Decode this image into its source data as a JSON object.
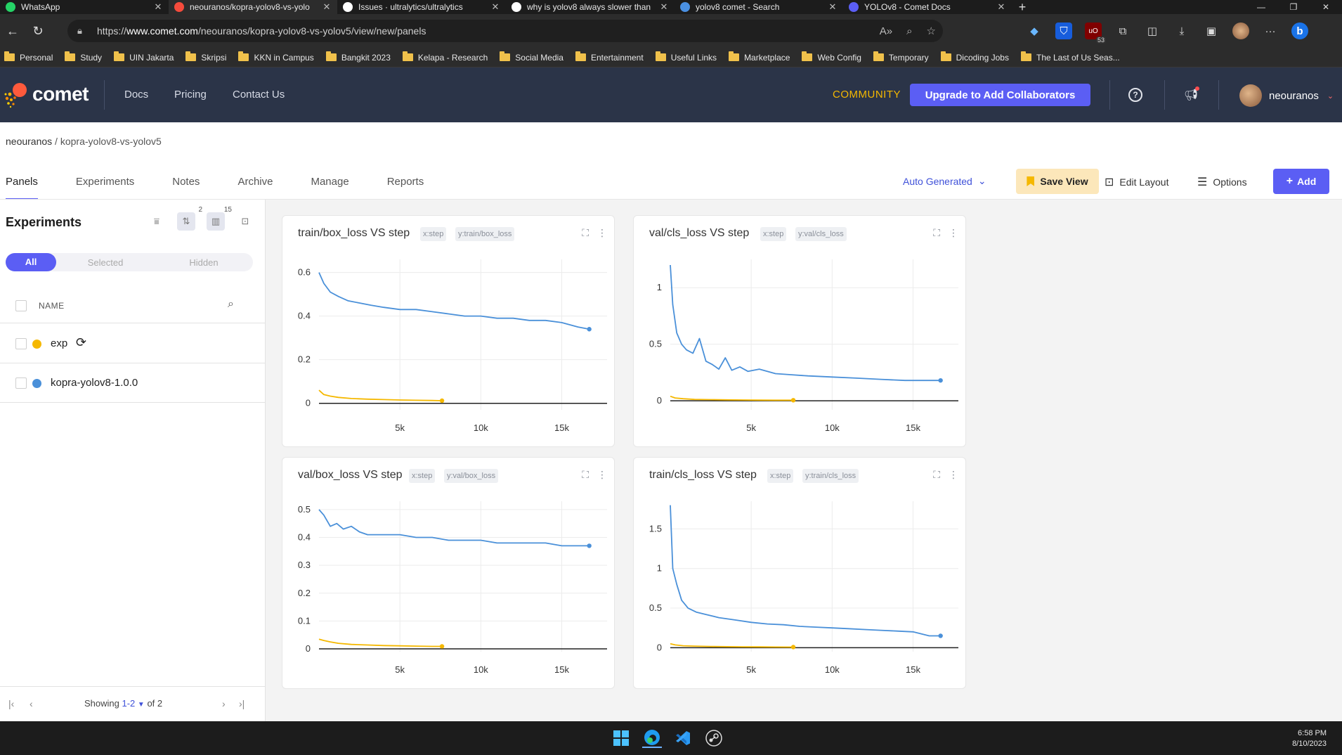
{
  "browser": {
    "tabs": [
      {
        "label": "WhatsApp",
        "color": "#25d366"
      },
      {
        "label": "neouranos/kopra-yolov8-vs-yolo",
        "color": "#f54b3c",
        "active": true
      },
      {
        "label": "Issues · ultralytics/ultralytics",
        "color": "#ffffff"
      },
      {
        "label": "why is yolov8 always slower than",
        "color": "#ffffff"
      },
      {
        "label": "yolov8 comet - Search",
        "color": "#4a90e2"
      },
      {
        "label": "YOLOv8 - Comet Docs",
        "color": "#5b5ef4"
      }
    ],
    "url_prefix": "https://",
    "url_domain": "www.comet.com",
    "url_path": "/neouranos/kopra-yolov8-vs-yolov5/view/new/panels",
    "extension_badge": "53",
    "bookmarks": [
      "Personal",
      "Study",
      "UIN Jakarta",
      "Skripsi",
      "KKN in Campus",
      "Bangkit 2023",
      "Kelapa - Research",
      "Social Media",
      "Entertainment",
      "Useful Links",
      "Marketplace",
      "Web Config",
      "Temporary",
      "Dicoding Jobs",
      "The Last of Us Seas..."
    ]
  },
  "header": {
    "brand": "comet",
    "nav": [
      "Docs",
      "Pricing",
      "Contact Us"
    ],
    "community": "COMMUNITY",
    "upgrade": "Upgrade to Add Collaborators",
    "username": "neouranos"
  },
  "breadcrumb": {
    "workspace": "neouranos",
    "separator": " / ",
    "project": "kopra-yolov8-vs-yolov5"
  },
  "tabs": [
    "Panels",
    "Experiments",
    "Notes",
    "Archive",
    "Manage",
    "Reports"
  ],
  "toolbar": {
    "view": "Auto Generated",
    "save_view": "Save View",
    "edit_layout": "Edit Layout",
    "options": "Options",
    "add": "Add"
  },
  "sidebar": {
    "title": "Experiments",
    "sort_count": "2",
    "columns_count": "15",
    "filters": [
      "All",
      "Selected",
      "Hidden"
    ],
    "name_header": "NAME",
    "experiments": [
      {
        "name": "exp",
        "color": "#f5b800",
        "running": true
      },
      {
        "name": "kopra-yolov8-1.0.0",
        "color": "#4a90d9",
        "running": false
      }
    ],
    "showing_label": "Showing",
    "showing_range": "1-2",
    "showing_total": "of 2"
  },
  "chart_data": [
    {
      "type": "line",
      "title": "train/box_loss VS step",
      "x_tag": "x:step",
      "y_tag": "y:train/box_loss",
      "xlim": [
        0,
        17800
      ],
      "ylim": [
        -0.03,
        0.66
      ],
      "xticks": [
        {
          "v": 5000,
          "label": "5k"
        },
        {
          "v": 10000,
          "label": "10k"
        },
        {
          "v": 15000,
          "label": "15k"
        }
      ],
      "yticks": [
        {
          "v": 0,
          "label": "0"
        },
        {
          "v": 0.2,
          "label": "0.2"
        },
        {
          "v": 0.4,
          "label": "0.4"
        },
        {
          "v": 0.6,
          "label": "0.6"
        }
      ],
      "series": [
        {
          "color": "#4a90d9",
          "x": [
            0,
            300,
            700,
            1200,
            1800,
            2500,
            3200,
            4000,
            5000,
            6000,
            7000,
            8000,
            9000,
            10000,
            11000,
            12000,
            13000,
            14000,
            15000,
            16000,
            16700
          ],
          "y": [
            0.6,
            0.55,
            0.51,
            0.49,
            0.47,
            0.46,
            0.45,
            0.44,
            0.43,
            0.43,
            0.42,
            0.41,
            0.4,
            0.4,
            0.39,
            0.39,
            0.38,
            0.38,
            0.37,
            0.35,
            0.34
          ]
        },
        {
          "color": "#f5b800",
          "x": [
            0,
            300,
            700,
            1200,
            2000,
            3000,
            4000,
            5000,
            6000,
            7000,
            7600
          ],
          "y": [
            0.06,
            0.04,
            0.033,
            0.027,
            0.022,
            0.019,
            0.017,
            0.015,
            0.014,
            0.013,
            0.012
          ]
        }
      ]
    },
    {
      "type": "line",
      "title": "val/cls_loss VS step",
      "x_tag": "x:step",
      "y_tag": "y:val/cls_loss",
      "xlim": [
        0,
        17800
      ],
      "ylim": [
        -0.08,
        1.25
      ],
      "xticks": [
        {
          "v": 5000,
          "label": "5k"
        },
        {
          "v": 10000,
          "label": "10k"
        },
        {
          "v": 15000,
          "label": "15k"
        }
      ],
      "yticks": [
        {
          "v": 0,
          "label": "0"
        },
        {
          "v": 0.5,
          "label": "0.5"
        },
        {
          "v": 1,
          "label": "1"
        }
      ],
      "series": [
        {
          "color": "#4a90d9",
          "x": [
            0,
            150,
            400,
            700,
            1000,
            1400,
            1800,
            2200,
            2600,
            3000,
            3400,
            3800,
            4300,
            4800,
            5500,
            6500,
            7500,
            8500,
            10000,
            11500,
            13000,
            14500,
            16000,
            16700
          ],
          "y": [
            1.2,
            0.85,
            0.6,
            0.5,
            0.45,
            0.42,
            0.55,
            0.35,
            0.32,
            0.28,
            0.38,
            0.27,
            0.3,
            0.26,
            0.28,
            0.24,
            0.23,
            0.22,
            0.21,
            0.2,
            0.19,
            0.18,
            0.18,
            0.18
          ]
        },
        {
          "color": "#f5b800",
          "x": [
            0,
            300,
            800,
            1500,
            2500,
            3500,
            4500,
            5500,
            6500,
            7600
          ],
          "y": [
            0.04,
            0.025,
            0.018,
            0.012,
            0.01,
            0.008,
            0.007,
            0.006,
            0.005,
            0.005
          ]
        }
      ]
    },
    {
      "type": "line",
      "title": "val/box_loss VS step",
      "x_tag": "x:step",
      "y_tag": "y:val/box_loss",
      "xlim": [
        0,
        17800
      ],
      "ylim": [
        -0.01,
        0.53
      ],
      "xticks": [
        {
          "v": 5000,
          "label": "5k"
        },
        {
          "v": 10000,
          "label": "10k"
        },
        {
          "v": 15000,
          "label": "15k"
        }
      ],
      "yticks": [
        {
          "v": 0,
          "label": "0"
        },
        {
          "v": 0.1,
          "label": "0.1"
        },
        {
          "v": 0.2,
          "label": "0.2"
        },
        {
          "v": 0.3,
          "label": "0.3"
        },
        {
          "v": 0.4,
          "label": "0.4"
        },
        {
          "v": 0.5,
          "label": "0.5"
        }
      ],
      "series": [
        {
          "color": "#4a90d9",
          "x": [
            0,
            300,
            700,
            1100,
            1500,
            2000,
            2500,
            3000,
            4000,
            5000,
            6000,
            7000,
            8000,
            9000,
            10000,
            11000,
            12000,
            13000,
            14000,
            15000,
            16000,
            16700
          ],
          "y": [
            0.5,
            0.48,
            0.44,
            0.45,
            0.43,
            0.44,
            0.42,
            0.41,
            0.41,
            0.41,
            0.4,
            0.4,
            0.39,
            0.39,
            0.39,
            0.38,
            0.38,
            0.38,
            0.38,
            0.37,
            0.37,
            0.37
          ]
        },
        {
          "color": "#f5b800",
          "x": [
            0,
            300,
            700,
            1200,
            2000,
            3000,
            4000,
            5000,
            6000,
            7000,
            7600
          ],
          "y": [
            0.035,
            0.03,
            0.025,
            0.02,
            0.016,
            0.014,
            0.012,
            0.011,
            0.01,
            0.009,
            0.009
          ]
        }
      ]
    },
    {
      "type": "line",
      "title": "train/cls_loss VS step",
      "x_tag": "x:step",
      "y_tag": "y:train/cls_loss",
      "xlim": [
        0,
        17800
      ],
      "ylim": [
        -0.05,
        1.85
      ],
      "xticks": [
        {
          "v": 5000,
          "label": "5k"
        },
        {
          "v": 10000,
          "label": "10k"
        },
        {
          "v": 15000,
          "label": "15k"
        }
      ],
      "yticks": [
        {
          "v": 0,
          "label": "0"
        },
        {
          "v": 0.5,
          "label": "0.5"
        },
        {
          "v": 1,
          "label": "1"
        },
        {
          "v": 1.5,
          "label": "1.5"
        }
      ],
      "series": [
        {
          "color": "#4a90d9",
          "x": [
            0,
            150,
            400,
            700,
            1100,
            1600,
            2200,
            3000,
            4000,
            5000,
            6000,
            7000,
            8000,
            9000,
            10000,
            11000,
            12000,
            13000,
            14000,
            15000,
            16000,
            16700
          ],
          "y": [
            1.8,
            1.0,
            0.8,
            0.6,
            0.5,
            0.45,
            0.42,
            0.38,
            0.35,
            0.32,
            0.3,
            0.29,
            0.27,
            0.26,
            0.25,
            0.24,
            0.23,
            0.22,
            0.21,
            0.2,
            0.15,
            0.15
          ]
        },
        {
          "color": "#f5b800",
          "x": [
            0,
            300,
            800,
            1500,
            2500,
            3500,
            4500,
            5500,
            6500,
            7600
          ],
          "y": [
            0.05,
            0.035,
            0.025,
            0.02,
            0.016,
            0.013,
            0.011,
            0.01,
            0.009,
            0.008
          ]
        }
      ]
    }
  ],
  "taskbar": {
    "time": "6:58 PM",
    "date": "8/10/2023"
  }
}
